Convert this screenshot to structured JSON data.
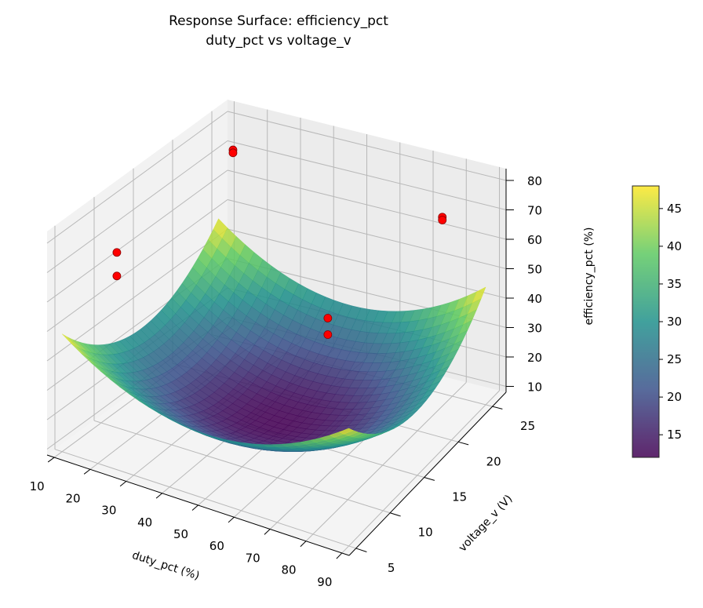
{
  "chart_data": {
    "type": "surface3d",
    "title": [
      "Response Surface: efficiency_pct",
      "duty_pct vs voltage_v"
    ],
    "xlabel": "duty_pct (%)",
    "ylabel": "voltage_v (V)",
    "zlabel": "efficiency_pct (%)",
    "xlim": [
      8,
      92
    ],
    "ylim": [
      4,
      27
    ],
    "zlim": [
      8,
      84
    ],
    "xticks": [
      "10",
      "20",
      "30",
      "40",
      "50",
      "60",
      "70",
      "80",
      "90"
    ],
    "yticks": [
      "5",
      "10",
      "15",
      "20",
      "25"
    ],
    "zticks": [
      "10",
      "20",
      "30",
      "40",
      "50",
      "60",
      "70",
      "80"
    ],
    "surface": {
      "model": "z = 12 + 18*((duty-50)/40)^2 + 18*((voltage-15)/10)^2",
      "x_range": [
        10,
        90
      ],
      "y_range": [
        5,
        25
      ],
      "colormap": "viridis",
      "alpha": 0.85
    },
    "points": [
      {
        "x": 12,
        "y": 26,
        "z": 70
      },
      {
        "x": 12,
        "y": 26,
        "z": 69
      },
      {
        "x": 77,
        "y": 25,
        "z": 68
      },
      {
        "x": 77,
        "y": 25,
        "z": 67
      },
      {
        "x": 10,
        "y": 12,
        "z": 62
      },
      {
        "x": 10,
        "y": 12,
        "z": 54
      },
      {
        "x": 60,
        "y": 17,
        "z": 46.6
      },
      {
        "x": 60,
        "y": 17,
        "z": 41
      }
    ],
    "point_color": "#ff0000",
    "colorbar": {
      "range": [
        12,
        48
      ],
      "ticks": [
        "15",
        "20",
        "25",
        "30",
        "35",
        "40",
        "45"
      ]
    },
    "grid": true
  }
}
